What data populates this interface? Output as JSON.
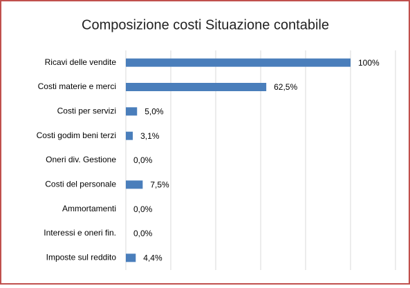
{
  "chart_data": {
    "type": "bar",
    "orientation": "horizontal",
    "title": "Composizione costi Situazione contabile",
    "categories": [
      "Ricavi delle vendite",
      "Costi materie e merci",
      "Costi per servizi",
      "Costi godim beni terzi",
      "Oneri div. Gestione",
      "Costi del personale",
      "Ammortamenti",
      "Interessi e oneri fin.",
      "Imposte sul reddito"
    ],
    "values": [
      100,
      62.5,
      5.0,
      3.1,
      0.0,
      7.5,
      0.0,
      0.0,
      4.4
    ],
    "value_labels": [
      "100%",
      "62,5%",
      "5,0%",
      "3,1%",
      "0,0%",
      "7,5%",
      "0,0%",
      "0,0%",
      "4,4%"
    ],
    "color": "#4a7ebb",
    "xlim": [
      0,
      120
    ],
    "xticks": [
      0,
      20,
      40,
      60,
      80,
      100,
      120
    ],
    "grid": true
  }
}
